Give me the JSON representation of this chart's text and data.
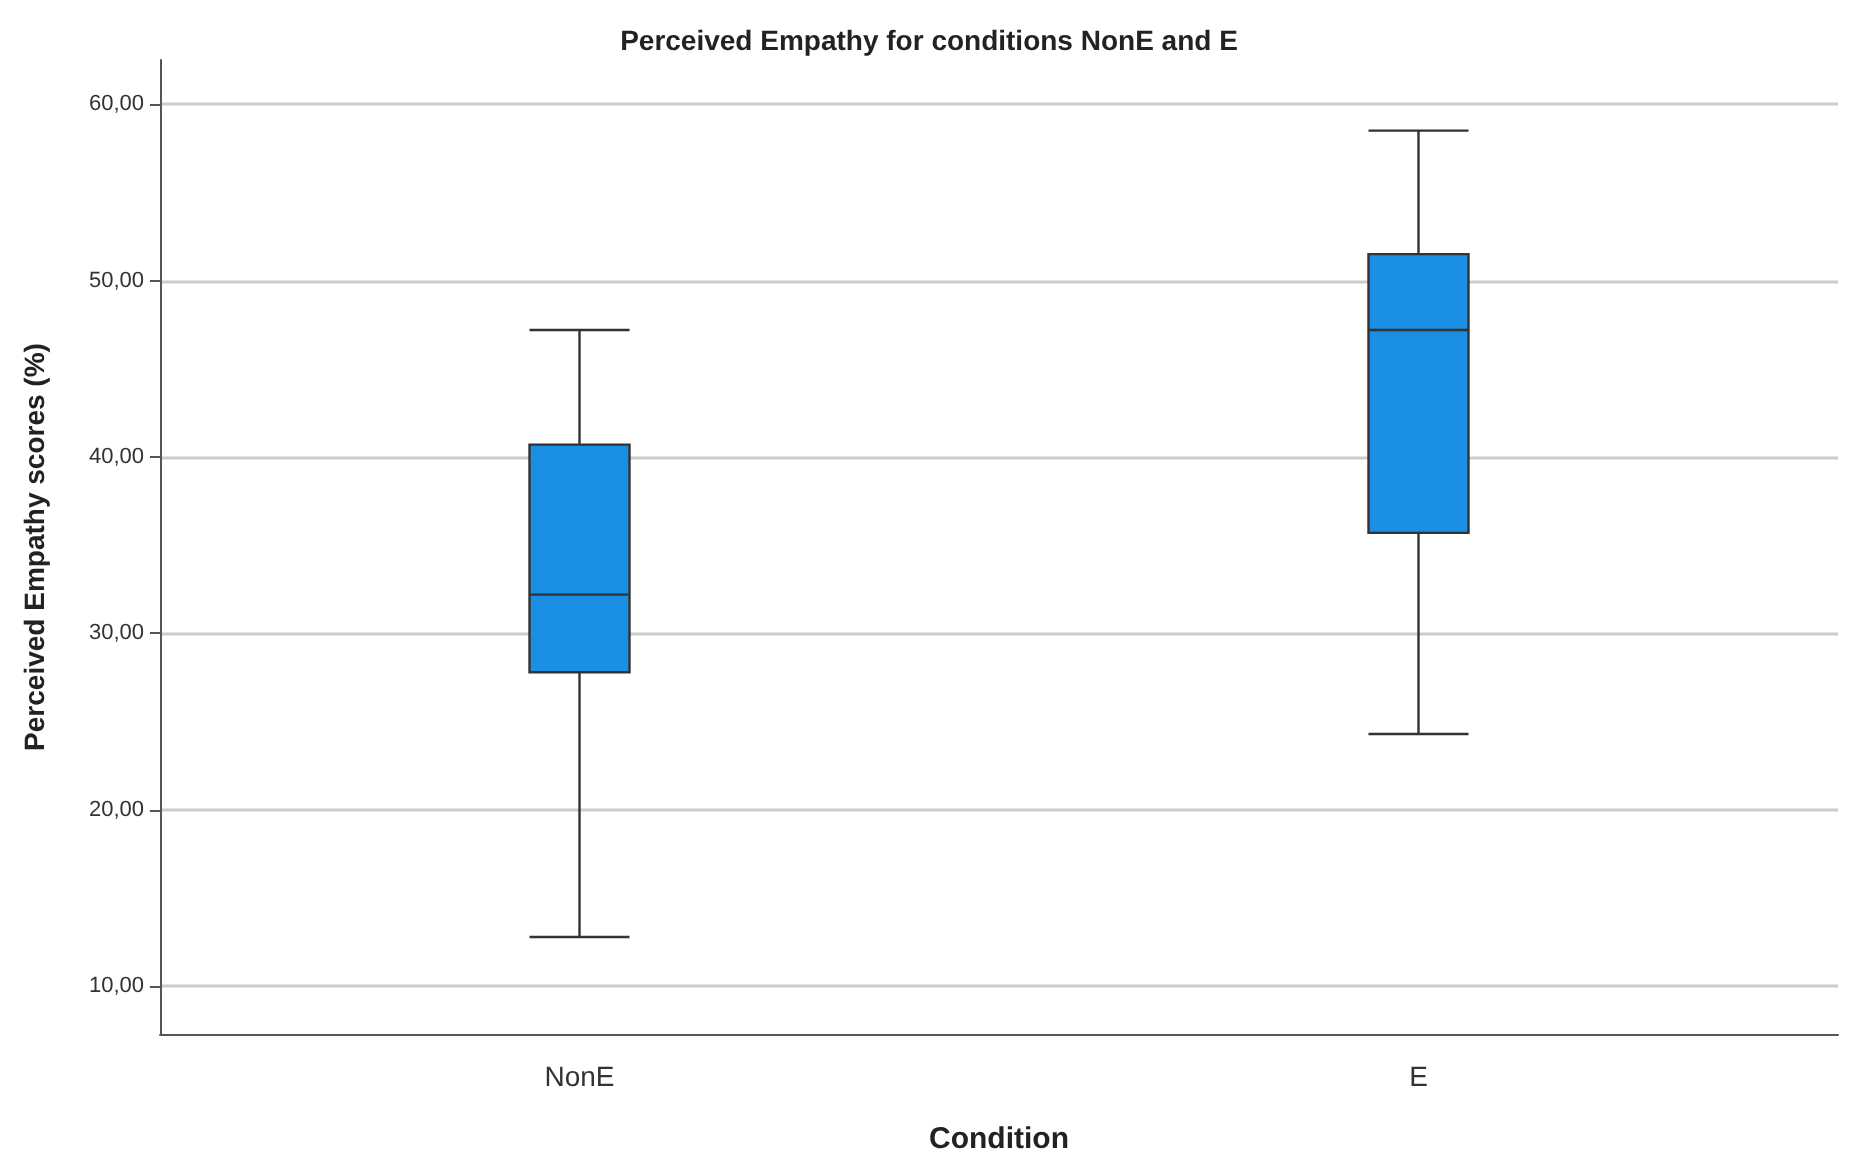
{
  "chart_data": {
    "type": "box",
    "title": "Perceived Empathy for conditions NonE and E",
    "xlabel": "Condition",
    "ylabel": "Perceived Empathy scores (%)",
    "categories": [
      "NonE",
      "E"
    ],
    "series": [
      {
        "color": "#1a8fe3",
        "boxes": [
          {
            "low": 12.8,
            "q1": 27.8,
            "median": 32.2,
            "q3": 40.7,
            "high": 47.2
          },
          {
            "low": 24.3,
            "q1": 35.7,
            "median": 47.2,
            "q3": 51.5,
            "high": 58.5
          }
        ]
      }
    ],
    "ylim": [
      7.3,
      62.5
    ],
    "yticks": [
      {
        "value": 10,
        "label": "10,00"
      },
      {
        "value": 20,
        "label": "20,00"
      },
      {
        "value": 30,
        "label": "30,00"
      },
      {
        "value": 40,
        "label": "40,00"
      },
      {
        "value": 50,
        "label": "50,00"
      },
      {
        "value": 60,
        "label": "60,00"
      }
    ],
    "grid": "y"
  }
}
